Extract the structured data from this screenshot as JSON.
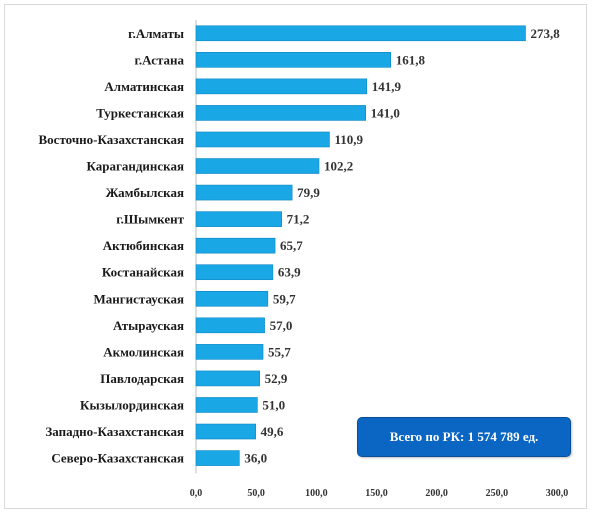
{
  "chart_data": {
    "type": "bar",
    "orientation": "horizontal",
    "categories": [
      "г.Алматы",
      "г.Астана",
      "Алматинская",
      "Туркестанская",
      "Восточно-Казахстанская",
      "Карагандинская",
      "Жамбылская",
      "г.Шымкент",
      "Актюбинская",
      "Костанайская",
      "Мангистауская",
      "Атырауская",
      "Акмолинская",
      "Павлодарская",
      "Кызылординская",
      "Западно-Казахстанская",
      "Северо-Казахстанская"
    ],
    "values": [
      273.8,
      161.8,
      141.9,
      141.0,
      110.9,
      102.2,
      79.9,
      71.2,
      65.7,
      63.9,
      59.7,
      57.0,
      55.7,
      52.9,
      51.0,
      49.6,
      36.0
    ],
    "value_labels": [
      "273,8",
      "161,8",
      "141,9",
      "141,0",
      "110,9",
      "102,2",
      "79,9",
      "71,2",
      "65,7",
      "63,9",
      "59,7",
      "57,0",
      "55,7",
      "52,9",
      "51,0",
      "49,6",
      "36,0"
    ],
    "xlim": [
      0,
      300
    ],
    "ticks": [
      0,
      50,
      100,
      150,
      200,
      250,
      300
    ],
    "tick_labels": [
      "0,0",
      "50,0",
      "100,0",
      "150,0",
      "200,0",
      "250,0",
      "300,0"
    ],
    "grid": false,
    "bar_color": "#1aa7e6",
    "bar_stroke": "#0e86c2"
  },
  "total_box": {
    "text": "Всего по РК: 1 574 789 ед.",
    "color": "#0a66c2"
  }
}
